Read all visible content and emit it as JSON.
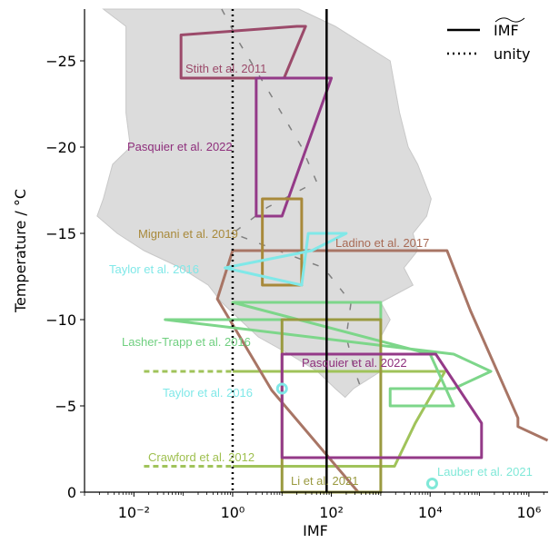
{
  "chart_data": {
    "type": "line",
    "xlabel": "IMF",
    "ylabel": "Temperature / °C",
    "xscale": "log",
    "xlim": [
      0.001,
      2450000
    ],
    "ylim": [
      0,
      -28
    ],
    "xticks": [
      {
        "value": 0.01,
        "label": "10⁻²"
      },
      {
        "value": 1,
        "label": "10⁰"
      },
      {
        "value": 100,
        "label": "10²"
      },
      {
        "value": 10000,
        "label": "10⁴"
      },
      {
        "value": 1000000,
        "label": "10⁶"
      }
    ],
    "yticks": [
      0,
      {
        "value": -5,
        "label": "−5"
      },
      {
        "value": -10,
        "label": "−10"
      },
      {
        "value": -15,
        "label": "−15"
      },
      {
        "value": -20,
        "label": "−20"
      },
      {
        "value": -25,
        "label": "−25"
      }
    ],
    "legend": "upper right",
    "band": {
      "color": "#dcdcdc",
      "y": [
        -28,
        -27,
        -25,
        -22,
        -20,
        -19,
        -17,
        -16,
        -15,
        -14,
        -13,
        -12,
        -11,
        -10,
        -9,
        -8,
        -7,
        -6,
        -5.5
      ],
      "x_low": [
        0.0024,
        0.0069,
        0.0069,
        0.0069,
        0.0085,
        0.0037,
        0.0024,
        0.0018,
        0.0046,
        0.016,
        0.089,
        0.32,
        0.6,
        1.4,
        3.3,
        14,
        52,
        120,
        190
      ],
      "x_high": [
        22,
        120,
        1550,
        2400,
        3600,
        5600,
        10500,
        8500,
        4500,
        5600,
        2950,
        4500,
        1000,
        1550,
        1000,
        1000,
        1000,
        280,
        190
      ]
    },
    "median": {
      "color": "#808080",
      "x": [
        0.6,
        1.4,
        6,
        25,
        50,
        5,
        1,
        70,
        250,
        200,
        300,
        400
      ],
      "y": [
        -28,
        -26,
        -23,
        -20,
        -18,
        -16.5,
        -15,
        -13,
        -11,
        -9,
        -7,
        -6
      ]
    },
    "vlines": [
      {
        "name": "IMF",
        "x": 80,
        "color": "#000000",
        "style": "solid"
      },
      {
        "name": "unity",
        "x": 1,
        "color": "#000000",
        "style": "dotted"
      }
    ],
    "series": [
      {
        "color": "#a0c35a",
        "style": "solid",
        "closed": false,
        "x": [
          1,
          20000,
          5000,
          1900,
          1
        ],
        "y": [
          -7,
          -7,
          -4,
          -1.5,
          -1.5
        ]
      },
      {
        "color": "#a0c35a",
        "style": "dashed",
        "closed": false,
        "x": [
          0.016,
          1
        ],
        "y": [
          -7,
          -7
        ]
      },
      {
        "color": "#a0c35a",
        "style": "dashed",
        "closed": false,
        "x": [
          0.016,
          1
        ],
        "y": [
          -1.5,
          -1.5
        ]
      },
      {
        "color": "#a87565",
        "style": "solid",
        "closed": false,
        "x": [
          350,
          6.2,
          0.49,
          1,
          22000,
          66000,
          600000,
          600000,
          2400000
        ],
        "y": [
          0,
          -5.9,
          -11.2,
          -14,
          -14,
          -10.5,
          -4.3,
          -3.8,
          -3
        ]
      },
      {
        "color": "#9b4a6a",
        "style": "solid",
        "closed": true,
        "x": [
          0.09,
          20,
          30,
          11,
          0.09
        ],
        "y": [
          -26.5,
          -27,
          -27,
          -24,
          -24
        ]
      },
      {
        "color": "#943a88",
        "style": "solid",
        "closed": true,
        "x": [
          3,
          100,
          10,
          3
        ],
        "y": [
          -24,
          -24,
          -16,
          -16
        ]
      },
      {
        "color": "#a8893a",
        "style": "solid",
        "closed": true,
        "x": [
          4,
          25,
          25,
          4
        ],
        "y": [
          -17,
          -17,
          -12,
          -12
        ]
      },
      {
        "color": "#80e8e8",
        "style": "solid",
        "closed": true,
        "x": [
          34,
          200,
          40,
          0.7,
          25
        ],
        "y": [
          -15,
          -15,
          -14,
          -13,
          -12
        ]
      },
      {
        "color": "#7dd68a",
        "style": "solid",
        "closed": true,
        "x": [
          1,
          1000,
          1000,
          0.043,
          30000,
          170000,
          30000,
          1550,
          1550,
          30000,
          10000
        ],
        "y": [
          -11,
          -11,
          -10,
          -10,
          -8,
          -7,
          -6,
          -6,
          -5,
          -5,
          -8
        ]
      },
      {
        "color": "#9a9a40",
        "style": "solid",
        "closed": true,
        "x": [
          10,
          1000,
          1000,
          10
        ],
        "y": [
          -10,
          -10,
          0,
          0
        ]
      },
      {
        "color": "#943a88",
        "style": "solid",
        "closed": true,
        "x": [
          10,
          13000,
          110000,
          110000,
          10
        ],
        "y": [
          -8,
          -8,
          -4,
          -2,
          -2
        ]
      }
    ],
    "markers": [
      {
        "color": "#80e8e8",
        "x": 10,
        "y": -6
      },
      {
        "color": "#80e8d8",
        "x": 11000,
        "y": -0.5
      }
    ],
    "annotations": [
      {
        "text": "Stith et al. 2011",
        "color": "#9b4a6a"
      },
      {
        "text": "Pasquier et al. 2022",
        "color": "#8e2f7c"
      },
      {
        "text": "Mignani et al. 2019",
        "color": "#a8893a"
      },
      {
        "text": "Ladino et al. 2017",
        "color": "#a86a55"
      },
      {
        "text": "Taylor et al. 2016",
        "color": "#80e8e8"
      },
      {
        "text": "Lasher-Trapp et al. 2016",
        "color": "#6fcf7f"
      },
      {
        "text": "Pasquier et al. 2022",
        "color": "#8e2f7c"
      },
      {
        "text": "Taylor et al. 2016",
        "color": "#80e8e8"
      },
      {
        "text": "Crawford et al. 2012",
        "color": "#9fc050"
      },
      {
        "text": "Li et al. 2021",
        "color": "#9a9a40"
      },
      {
        "text": "Lauber et al. 2021",
        "color": "#80e8d8"
      }
    ]
  }
}
